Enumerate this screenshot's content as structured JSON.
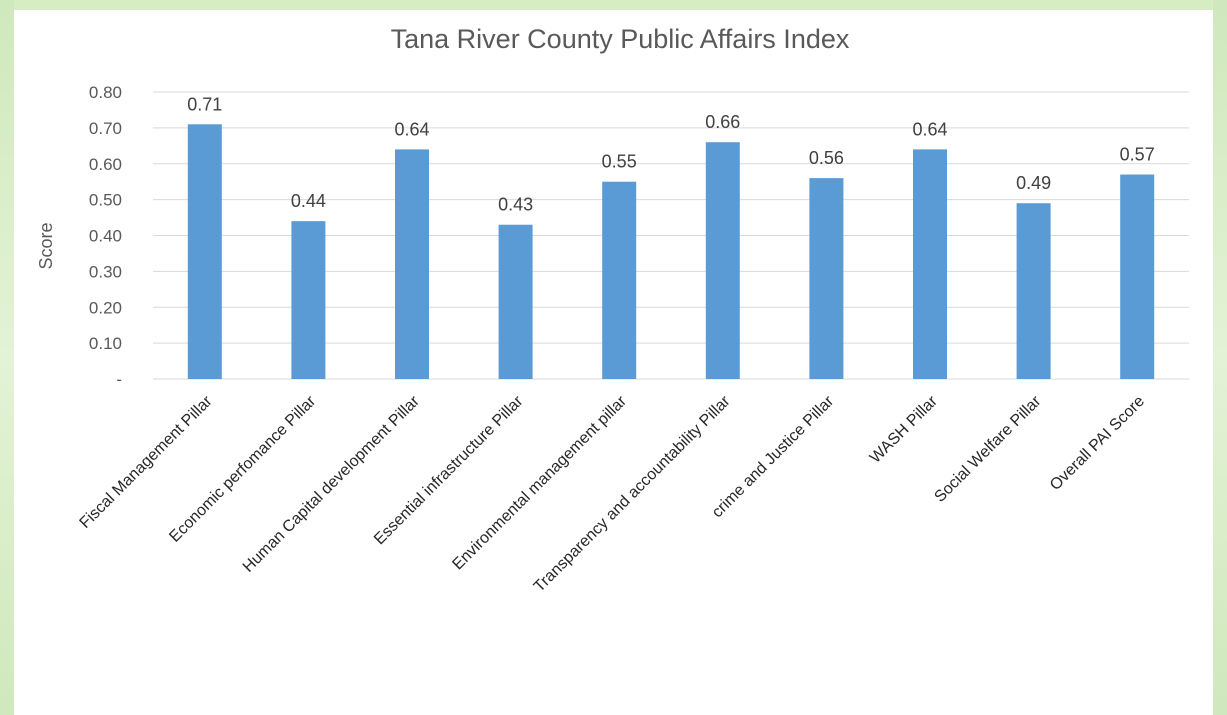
{
  "chart_data": {
    "type": "bar",
    "title": "Tana River County Public Affairs Index",
    "xlabel": "",
    "ylabel": "Score",
    "ylim": [
      0,
      0.8
    ],
    "yticks": [
      0,
      0.1,
      0.2,
      0.3,
      0.4,
      0.5,
      0.6,
      0.7,
      0.8
    ],
    "ytick_labels": [
      "-",
      "0.10",
      "0.20",
      "0.30",
      "0.40",
      "0.50",
      "0.60",
      "0.70",
      "0.80"
    ],
    "grid": true,
    "legend": "none",
    "bar_color": "#5b9bd5",
    "categories": [
      "Fiscal Management Pillar",
      "Economic perfomance Pillar",
      "Human Capital development Pillar",
      "Essential infrastructure Pillar",
      "Environmental management pillar",
      "Transparency and accountability Pillar",
      "crime and Justice Pillar",
      "WASH  Pillar",
      "Social Welfare  Pillar",
      "Overall PAI Score"
    ],
    "values": [
      0.71,
      0.44,
      0.64,
      0.43,
      0.55,
      0.66,
      0.56,
      0.64,
      0.49,
      0.57
    ],
    "data_labels": [
      "0.71",
      "0.44",
      "0.64",
      "0.43",
      "0.55",
      "0.66",
      "0.56",
      "0.64",
      "0.49",
      "0.57"
    ]
  }
}
